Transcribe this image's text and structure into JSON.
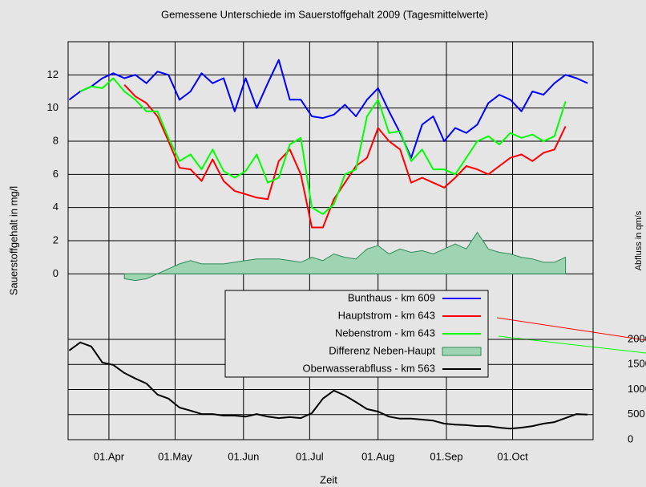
{
  "chart_data": {
    "type": "line",
    "title": "Gemessene Unterschiede im Sauerstoffgehalt 2009 (Tagesmittelwerte)",
    "x_label": "Zeit",
    "y_label": "Sauerstoffgehalt in mg/l",
    "y2_label": "Abfluss in qm/s",
    "x": [
      73,
      78,
      83,
      88,
      93,
      98,
      103,
      108,
      113,
      118,
      123,
      128,
      133,
      138,
      143,
      148,
      153,
      158,
      163,
      168,
      173,
      178,
      183,
      188,
      193,
      198,
      203,
      208,
      213,
      218,
      223,
      228,
      233,
      238,
      243,
      248,
      253,
      258,
      263,
      268,
      273,
      278,
      283,
      288,
      293,
      298,
      303,
      308
    ],
    "xlim": [
      72.5,
      310.5
    ],
    "xticks": [
      {
        "value": 91,
        "label": "01.Apr"
      },
      {
        "value": 121,
        "label": "01.May"
      },
      {
        "value": 152,
        "label": "01.Jun"
      },
      {
        "value": 182,
        "label": "01.Jul"
      },
      {
        "value": 213,
        "label": "01.Aug"
      },
      {
        "value": 244,
        "label": "01.Sep"
      },
      {
        "value": 274,
        "label": "01.Oct"
      }
    ],
    "ylim": [
      -10,
      14
    ],
    "yticks": [
      0,
      2,
      4,
      6,
      8,
      10,
      12
    ],
    "y2lim": [
      0,
      7936
    ],
    "y2ticks": [
      0,
      500,
      1000,
      1500,
      2000
    ],
    "grid": true,
    "series": [
      {
        "name": "Bunthaus - km 609",
        "color": "#0000ff",
        "values": [
          10.5,
          11.0,
          11.3,
          11.8,
          12.1,
          11.8,
          12.0,
          11.5,
          12.2,
          12.0,
          10.5,
          11.0,
          12.1,
          11.5,
          11.8,
          9.8,
          11.8,
          10.0,
          11.5,
          12.9,
          10.5,
          10.5,
          9.5,
          9.4,
          9.6,
          10.2,
          9.5,
          10.5,
          11.2,
          9.8,
          8.5,
          7.0,
          9.0,
          9.5,
          8.0,
          8.8,
          8.5,
          9.0,
          10.3,
          10.8,
          10.5,
          9.8,
          11.0,
          10.8,
          11.5,
          12.0,
          11.8,
          11.5
        ]
      },
      {
        "name": "Hauptstrom - km 643",
        "color": "#ff0000",
        "values": [
          null,
          null,
          null,
          null,
          null,
          11.4,
          10.7,
          10.3,
          9.5,
          8.0,
          6.4,
          6.3,
          5.6,
          6.9,
          5.6,
          5.0,
          4.8,
          4.6,
          4.5,
          6.8,
          7.5,
          6.0,
          2.8,
          2.8,
          4.5,
          5.5,
          6.5,
          7.0,
          8.8,
          8.0,
          7.5,
          5.5,
          5.8,
          5.5,
          5.2,
          5.8,
          6.5,
          6.3,
          6.0,
          6.5,
          7.0,
          7.2,
          6.8,
          7.3,
          7.5,
          8.9,
          null,
          null
        ]
      },
      {
        "name": "Nebenstrom - km 643",
        "color": "#00ff00",
        "values": [
          null,
          11.0,
          11.3,
          11.2,
          11.8,
          11.0,
          10.5,
          9.8,
          9.8,
          8.2,
          6.8,
          7.2,
          6.3,
          7.5,
          6.2,
          5.8,
          6.2,
          7.2,
          5.5,
          5.8,
          7.8,
          8.2,
          4.0,
          3.6,
          4.2,
          6.0,
          6.3,
          9.5,
          10.5,
          8.5,
          8.6,
          6.8,
          7.5,
          6.3,
          6.3,
          6.0,
          7.0,
          8.0,
          8.3,
          7.8,
          8.5,
          8.2,
          8.4,
          8.0,
          8.3,
          10.4,
          null,
          null
        ]
      },
      {
        "name": "Differenz Neben-Haupt",
        "type": "area",
        "color": "#2e8b57",
        "fill": "#9fd4b2",
        "values": [
          null,
          null,
          null,
          null,
          null,
          -0.3,
          -0.4,
          -0.3,
          0.0,
          0.3,
          0.6,
          0.8,
          0.6,
          0.6,
          0.6,
          0.7,
          0.8,
          0.9,
          0.9,
          0.9,
          0.8,
          0.7,
          1.0,
          0.8,
          1.2,
          1.0,
          0.9,
          1.5,
          1.7,
          1.2,
          1.5,
          1.3,
          1.4,
          1.2,
          1.5,
          1.8,
          1.5,
          2.5,
          1.5,
          1.3,
          1.2,
          1.0,
          0.9,
          0.7,
          0.7,
          1.0,
          null,
          null
        ]
      },
      {
        "name": "Oberwasserabfluss - km 563",
        "color": "#000000",
        "axis": "y2",
        "values": [
          1780,
          1940,
          1860,
          1540,
          1490,
          1330,
          1220,
          1120,
          900,
          820,
          640,
          580,
          510,
          510,
          480,
          480,
          460,
          510,
          460,
          430,
          450,
          430,
          530,
          820,
          980,
          880,
          750,
          610,
          560,
          460,
          420,
          420,
          400,
          380,
          320,
          300,
          290,
          270,
          270,
          240,
          220,
          240,
          270,
          320,
          350,
          430,
          510,
          500
        ]
      }
    ]
  }
}
